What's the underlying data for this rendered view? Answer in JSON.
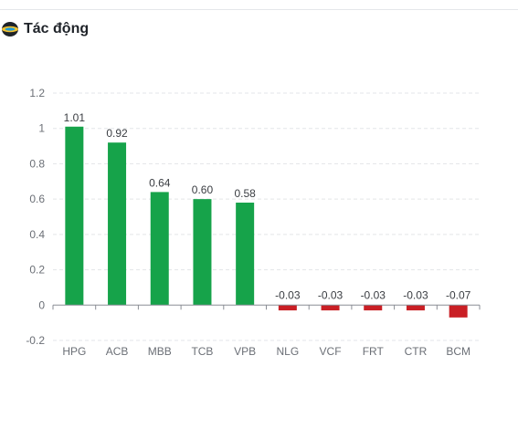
{
  "header": {
    "title": "Tác động",
    "icon": "globe-icon"
  },
  "colors": {
    "positive": "#16a34a",
    "negative": "#c91f25",
    "grid": "#e3e5e8",
    "axis_text": "#6b6f76",
    "label_text": "#3a3d42"
  },
  "chart_data": {
    "type": "bar",
    "title": "",
    "xlabel": "",
    "ylabel": "",
    "categories": [
      "HPG",
      "ACB",
      "MBB",
      "TCB",
      "VPB",
      "NLG",
      "VCF",
      "FRT",
      "CTR",
      "BCM"
    ],
    "values": [
      1.01,
      0.92,
      0.64,
      0.6,
      0.58,
      -0.03,
      -0.03,
      -0.03,
      -0.03,
      -0.07
    ],
    "value_labels": [
      "1.01",
      "0.92",
      "0.64",
      "0.60",
      "0.58",
      "-0.03",
      "-0.03",
      "-0.03",
      "-0.03",
      "-0.07"
    ],
    "ylim": [
      -0.2,
      1.2
    ],
    "yticks": [
      1.2,
      1,
      0.8,
      0.6,
      0.4,
      0.2,
      0,
      -0.2
    ],
    "ytick_labels": [
      "1.2",
      "1",
      "0.8",
      "0.6",
      "0.4",
      "0.2",
      "0",
      "-0.2"
    ],
    "grid": true,
    "legend": "none"
  }
}
